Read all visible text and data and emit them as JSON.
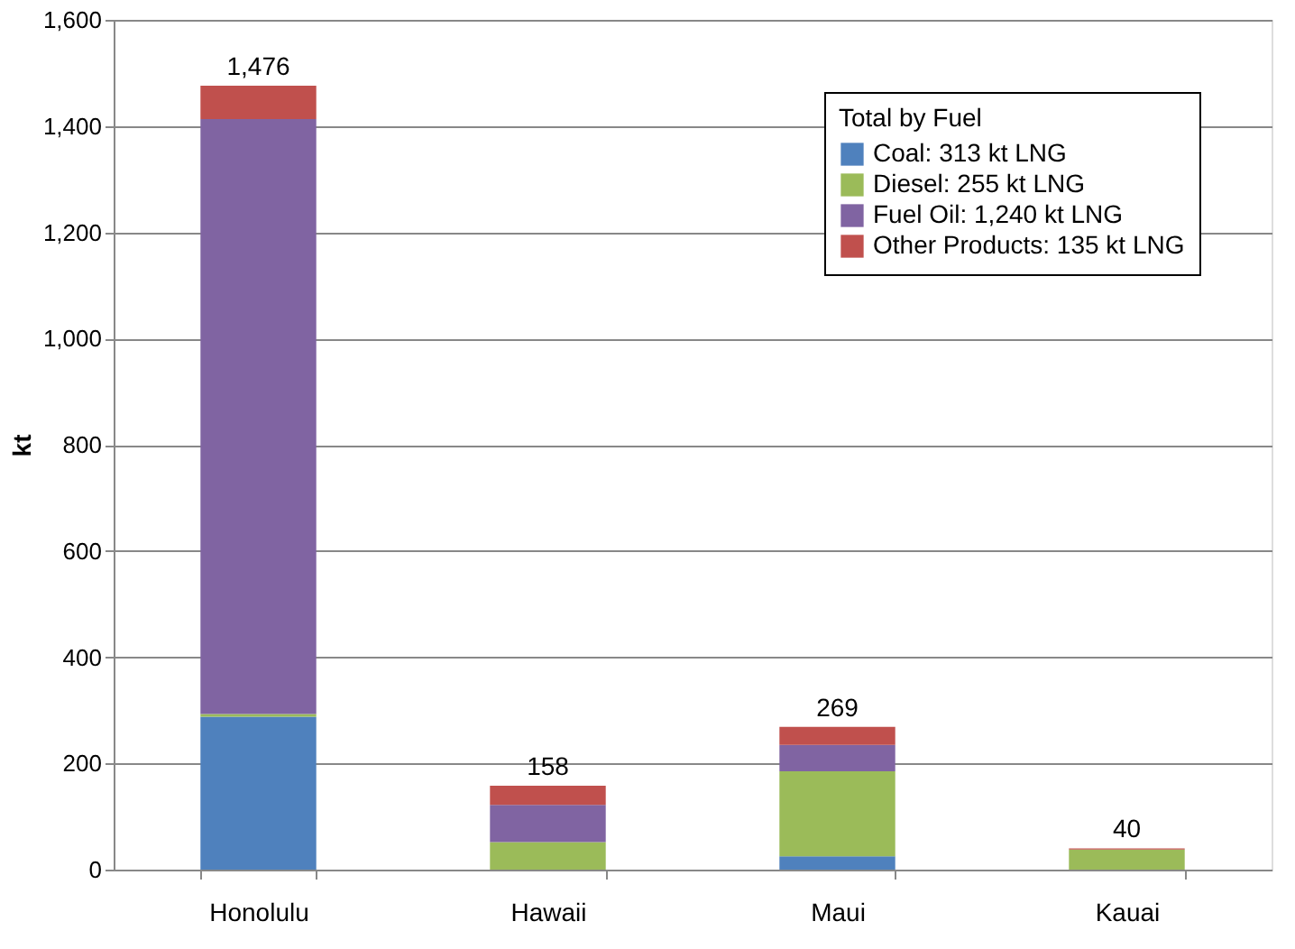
{
  "chart_data": {
    "type": "bar",
    "stacked": true,
    "ylabel": "kt",
    "legend_title": "Total by Fuel",
    "legend": "top right",
    "grid": "y",
    "categories": [
      "Honolulu",
      "Hawaii",
      "Maui",
      "Kauai"
    ],
    "series": [
      {
        "name": "Coal: 313 kt LNG",
        "color": "#4f81bd",
        "values": [
          288,
          0,
          25,
          0
        ]
      },
      {
        "name": "Diesel: 255 kt LNG",
        "color": "#9bbb59",
        "values": [
          5,
          52,
          160,
          38
        ]
      },
      {
        "name": "Fuel Oil: 1,240 kt LNG",
        "color": "#8064a2",
        "values": [
          1120,
          70,
          50,
          0
        ]
      },
      {
        "name": "Other Products: 135 kt LNG",
        "color": "#c0504d",
        "values": [
          63,
          36,
          34,
          2
        ]
      }
    ],
    "totals": [
      "1,476",
      "158",
      "269",
      "40"
    ],
    "ylim": [
      0,
      1600
    ],
    "yticks": [
      0,
      200,
      400,
      600,
      800,
      {
        "value": 1000,
        "label": "1,000"
      },
      {
        "value": 1200,
        "label": "1,200"
      },
      {
        "value": 1400,
        "label": "1,400"
      },
      {
        "value": 1600,
        "label": "1,600"
      }
    ]
  }
}
